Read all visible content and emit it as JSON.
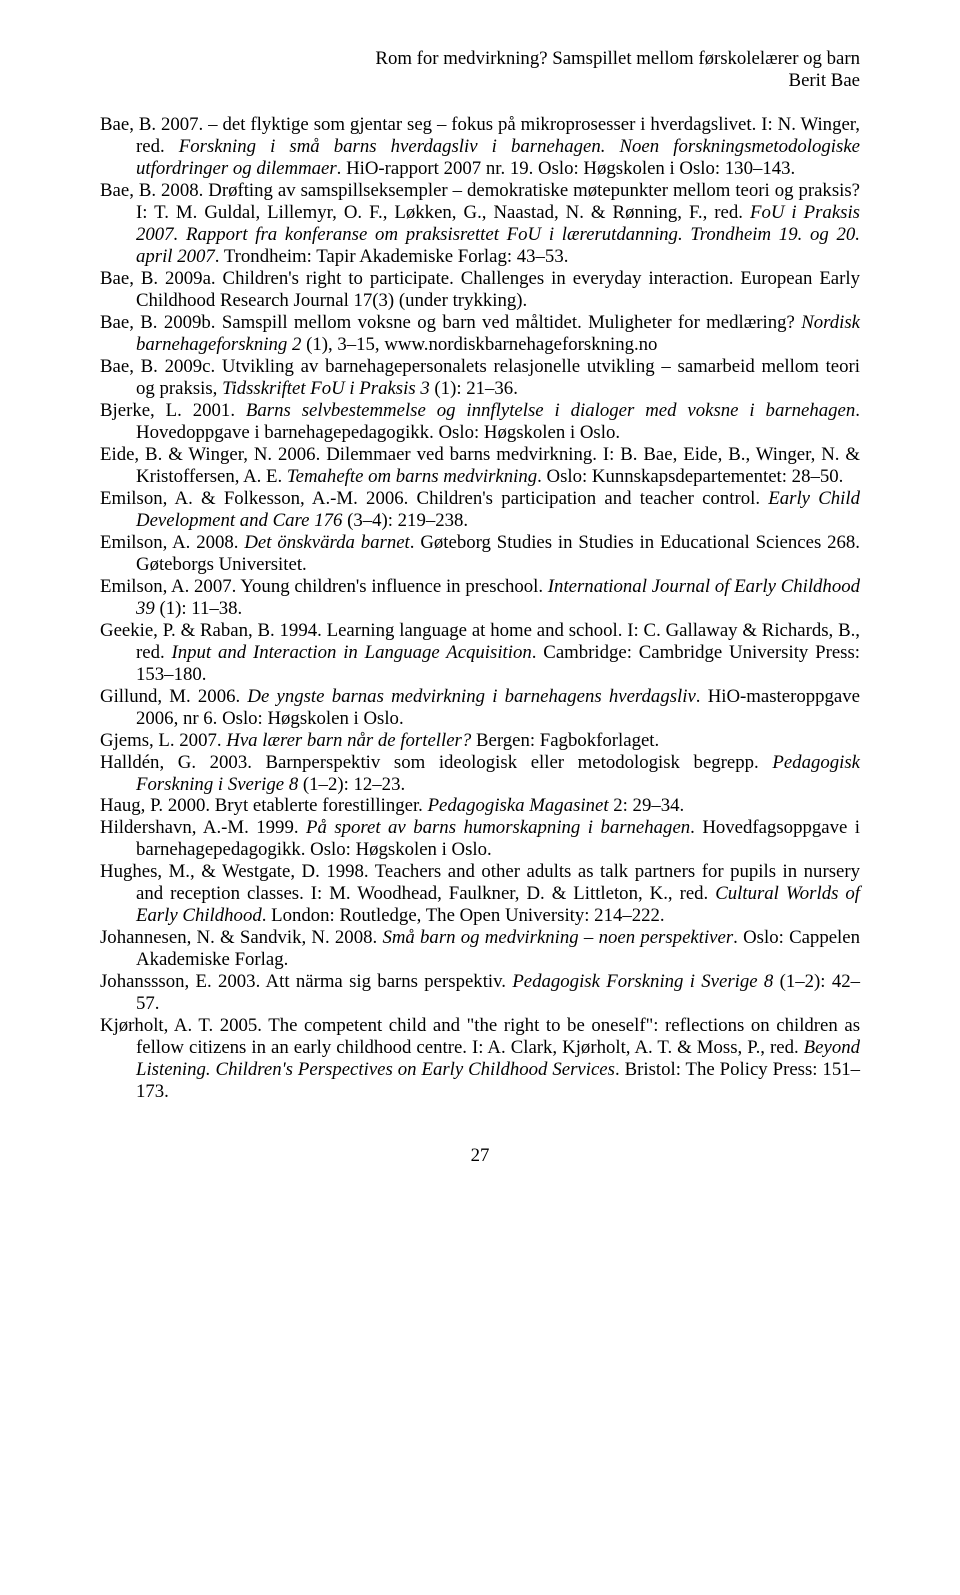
{
  "header": {
    "title_line1": "Rom for medvirkning? Samspillet mellom førskolelærer og barn",
    "title_line2": "Berit Bae"
  },
  "references": [
    {
      "html": "Bae, B. 2007. – det flyktige som gjentar seg – fokus på mikroprosesser i hverdagslivet. I: N. Winger, red. <span class=\"italic\">Forskning i små barns hverdagsliv i barnehagen. Noen forskningsmetodologiske utfordringer og dilemmaer</span>. HiO-rapport 2007 nr. 19. Oslo: Høgskolen i Oslo: 130–143."
    },
    {
      "html": "Bae, B. 2008. Drøfting av samspillseksempler – demokratiske møtepunkter mellom teori og praksis? I: T. M. Guldal, Lillemyr, O. F., Løkken, G., Naastad, N. & Rønning, F., red. <span class=\"italic\">FoU i Praksis 2007. Rapport fra konferanse om praksisrettet FoU i lærerutdanning. Trondheim 19. og 20. april 2007</span>. Trondheim: Tapir Akademiske Forlag: 43–53."
    },
    {
      "html": "Bae, B. 2009a. Children's right to participate. Challenges in everyday interaction. European Early Childhood Research Journal 17(3) (under trykking)."
    },
    {
      "html": "Bae, B. 2009b. Samspill mellom voksne og barn ved måltidet. Muligheter for medlæring? <span class=\"italic\">Nordisk barnehageforskning 2</span> (1), 3–15, www.nordiskbarnehageforskning.no"
    },
    {
      "html": "Bae, B. 2009c. Utvikling av barnehagepersonalets relasjonelle utvikling – samarbeid mellom teori og praksis, <span class=\"italic\">Tidsskriftet FoU i Praksis 3</span> (1): 21–36."
    },
    {
      "html": "Bjerke, L. 2001. <span class=\"italic\">Barns selvbestemmelse og innflytelse i dialoger med voksne i barnehagen</span>. Hovedoppgave i barnehagepedagogikk. Oslo: Høgskolen i Oslo."
    },
    {
      "html": "Eide, B. & Winger, N. 2006. Dilemmaer ved barns medvirkning. I: B. Bae, Eide, B., Winger, N. & Kristoffersen, A. E. <span class=\"italic\">Temahefte om barns medvirkning</span>. Oslo: Kunnskapsdepartementet: 28–50."
    },
    {
      "html": "Emilson, A. & Folkesson, A.-M. 2006. Children's participation and teacher control. <span class=\"italic\">Early Child Development and Care 176</span> (3–4): 219–238."
    },
    {
      "html": "Emilson, A. 2008. <span class=\"italic\">Det önskvärda barnet</span>. Gøteborg Studies in Studies in Educational Sciences 268. Gøteborgs Universitet."
    },
    {
      "html": "Emilson, A. 2007. Young children's influence in preschool. <span class=\"italic\">International Journal of Early Childhood 39</span> (1): 11–38."
    },
    {
      "html": "Geekie, P. & Raban, B. 1994. Learning language at home and school. I: C. Gallaway & Richards, B., red. <span class=\"italic\">Input and Interaction in Language Acquisition</span>. Cambridge: Cambridge University Press: 153–180."
    },
    {
      "html": "Gillund, M. 2006. <span class=\"italic\">De yngste barnas medvirkning i barnehagens hverdagsliv</span>. HiO-masteroppgave 2006, nr 6. Oslo: Høgskolen i Oslo."
    },
    {
      "html": "Gjems, L. 2007. <span class=\"italic\">Hva lærer barn når de forteller?</span> Bergen: Fagbokforlaget."
    },
    {
      "html": "Halldén, G. 2003. Barnperspektiv som ideologisk eller metodologisk begrepp. <span class=\"italic\">Pedagogisk Forskning i Sverige 8</span> (1–2): 12–23."
    },
    {
      "html": "Haug, P. 2000. Bryt etablerte forestillinger. <span class=\"italic\">Pedagogiska Magasinet</span> 2: 29–34."
    },
    {
      "html": "Hildershavn, A.-M. 1999. <span class=\"italic\">På sporet av barns humorskapning i barnehagen</span>. Hovedfagsoppgave i barnehagepedagogikk. Oslo: Høgskolen i Oslo."
    },
    {
      "html": "Hughes, M., & Westgate, D. 1998. Teachers and other adults as talk partners for pupils in nursery and reception classes. I: M. Woodhead, Faulkner, D. & Littleton, K., red. <span class=\"italic\">Cultural Worlds of Early Childhood</span>. London: Routledge, The Open University: 214–222."
    },
    {
      "html": "Johannesen, N. & Sandvik, N. 2008. <span class=\"italic\">Små barn og medvirkning – noen perspektiver</span>. Oslo: Cappelen Akademiske Forlag."
    },
    {
      "html": "Johanssson, E. 2003. Att närma sig barns perspektiv. <span class=\"italic\">Pedagogisk Forskning i Sverige 8</span> (1–2): 42–57."
    },
    {
      "html": "Kjørholt, A. T. 2005. The competent child and \"the right to be oneself\": reflections on children as fellow citizens in an early childhood centre. I: A. Clark, Kjørholt, A. T. & Moss, P., red. <span class=\"italic\">Beyond Listening. Children's Perspectives on Early Childhood Services</span>. Bristol: The Policy Press: 151–173."
    }
  ],
  "page_number": "27"
}
